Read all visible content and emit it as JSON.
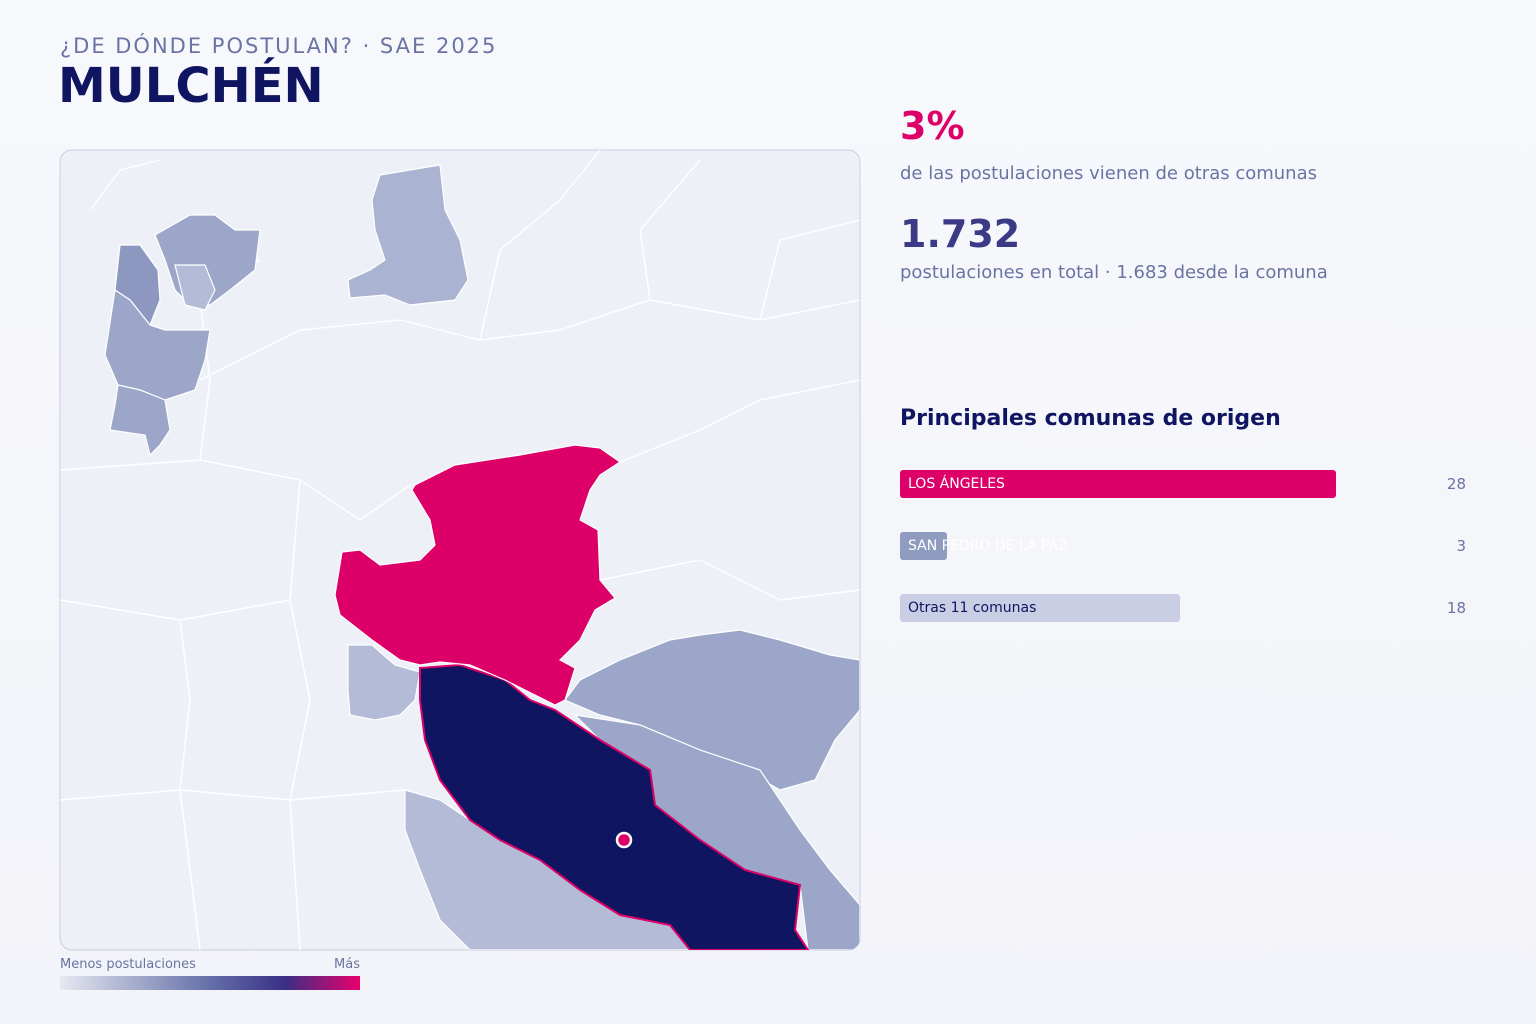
{
  "header": {
    "kicker": "¿DE DÓNDE POSTULAN? · SAE 2025",
    "title": "MULCHÉN"
  },
  "stats": [
    {
      "value": "3%",
      "text": "de las postulaciones vienen de otras comunas"
    },
    {
      "value": "1.732",
      "text": "postulaciones en total · 1.683 desde la comuna"
    }
  ],
  "top_origins": {
    "title": "Principales comunas de origen",
    "items": [
      {
        "label": "LOS ÁNGELES",
        "value": 28,
        "color": "#dc0068"
      },
      {
        "label": "SAN PEDRO DE LA PAZ",
        "value": 3,
        "color": "#8f9cc0"
      },
      {
        "label": "Otras 11 comunas",
        "value": 18,
        "color": "#c9cee4"
      }
    ]
  },
  "legend": {
    "low": "Menos postulaciones",
    "high": "Más"
  }
}
